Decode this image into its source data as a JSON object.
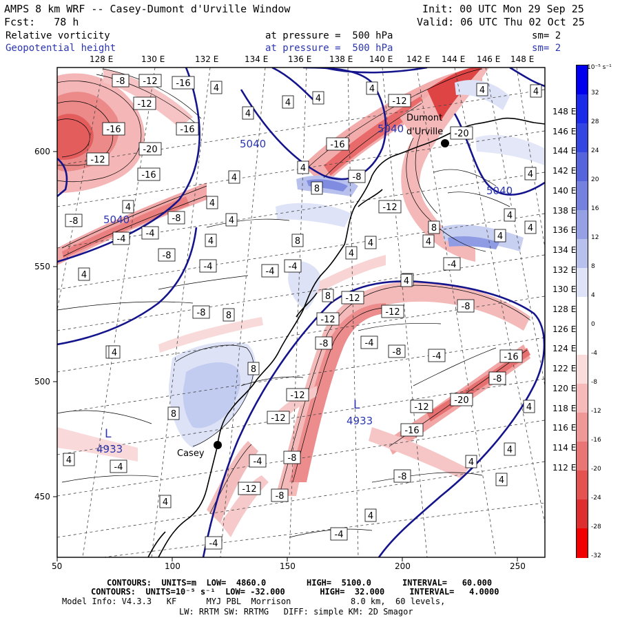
{
  "header": {
    "title": "AMPS 8 km WRF -- Casey-Dumont d'Urville Window",
    "init": "Init: 00 UTC Mon 29 Sep 25",
    "fcst": "Fcst:   78 h",
    "valid": "Valid: 06 UTC Thu 02 Oct 25",
    "field1": {
      "name": "Relative vorticity",
      "level": "at pressure =  500 hPa",
      "sm": "sm= 2"
    },
    "field2": {
      "name": "Geopotential height",
      "level": "at pressure =  500 hPa",
      "sm": "sm= 2"
    }
  },
  "map": {
    "top_lon_labels": [
      "128 E",
      "130 E",
      "132 E",
      "134 E",
      "136 E",
      "138 E",
      "140 E",
      "142 E",
      "144 E",
      "146 E",
      "148 E"
    ],
    "right_lat_labels": [
      "148 E",
      "146 E",
      "144 E",
      "142 E",
      "140 E",
      "138 E",
      "136 E",
      "134 E",
      "132 E",
      "130 E",
      "128 E",
      "126 E",
      "124 E",
      "122 E",
      "120 E",
      "118 E",
      "116 E",
      "114 E",
      "112 E"
    ],
    "x_ticks": [
      "50",
      "100",
      "150",
      "200",
      "250"
    ],
    "y_ticks": [
      "600",
      "550",
      "500",
      "450"
    ],
    "height_contours": [
      "5040",
      "5040",
      "5040",
      "5040"
    ],
    "lows": [
      {
        "mark": "L",
        "value": "4933"
      },
      {
        "mark": "L",
        "value": "4933"
      }
    ],
    "stations": [
      "Casey",
      "Dumont d'Urville"
    ],
    "vort_labels": [
      "-8",
      "-12",
      "-16",
      "-12",
      "-16",
      "-20",
      "-16",
      "-12",
      "-16",
      "-8",
      "-4",
      "-8",
      "-4",
      "-8",
      "-4",
      "-4",
      "-4",
      "-8",
      "-12",
      "-20",
      "-12",
      "-16",
      "-8",
      "-12",
      "-4",
      "-8",
      "-12",
      "-16",
      "-12",
      "-8",
      "-4",
      "-8",
      "-4",
      "-12",
      "-20",
      "-16",
      "-8",
      "-12",
      "-8",
      "-12",
      "-8",
      "-4",
      "-4",
      "-4",
      "-12",
      "-8",
      "-4",
      "4",
      "4",
      "4",
      "4",
      "4",
      "4",
      "4",
      "4",
      "4",
      "4",
      "4",
      "8",
      "8",
      "8",
      "8",
      "8",
      "8",
      "8",
      "8",
      "4",
      "4",
      "4",
      "4",
      "4",
      "4",
      "4",
      "4",
      "4",
      "4",
      "4",
      "4",
      "4",
      "4",
      "4",
      "4",
      "4",
      "4",
      "4",
      "4"
    ]
  },
  "colorbar": {
    "unit_label": "10⁻⁵ s⁻¹",
    "ticks": [
      "32",
      "28",
      "24",
      "20",
      "16",
      "12",
      "8",
      "4",
      "0",
      "-4",
      "-8",
      "-12",
      "-16",
      "-20",
      "-24",
      "-28",
      "-32"
    ],
    "colors": [
      "#0000ee",
      "#1a2ae8",
      "#3446e2",
      "#5564dd",
      "#7581de",
      "#95a1e4",
      "#b8c1ee",
      "#dfe3f7",
      "#ffffff",
      "#ffffff",
      "#fbdcdc",
      "#f6baba",
      "#f09797",
      "#ea7575",
      "#e45252",
      "#dd2f2f",
      "#f00000"
    ]
  },
  "footer": {
    "line1_a": "CONTOURS:  UNITS=m  LOW=  4860.0",
    "line1_b": "HIGH=  5100.0",
    "line1_c": "INTERVAL=   60.000",
    "line2": "CONTOURS:  UNITS=10⁻⁵ s⁻¹  LOW= -32.000       HIGH=  32.000     INTERVAL=   4.0000",
    "line3": "Model Info: V4.3.3   KF      MYJ PBL  Morrison            8.0 km,  60 levels,",
    "line4": "LW: RRTM SW: RRTMG   DIFF: simple KM: 2D Smagor"
  }
}
